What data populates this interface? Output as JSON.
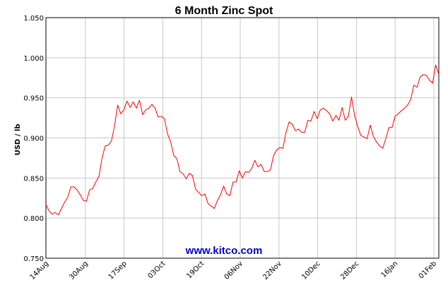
{
  "chart_data": {
    "type": "line",
    "title": "6 Month Zinc Spot",
    "xlabel": "",
    "ylabel": "USD / lb",
    "ylim": [
      0.75,
      1.05
    ],
    "yticks": [
      "1.050",
      "1.000",
      "0.950",
      "0.900",
      "0.850",
      "0.800",
      "0.750"
    ],
    "xticks": [
      "14Aug",
      "30Aug",
      "17Sep",
      "03Oct",
      "19Oct",
      "06Nov",
      "22Nov",
      "10Dec",
      "28Dec",
      "16Jan",
      "01Feb"
    ],
    "grid": true,
    "line_color": "#ff0000",
    "watermark": "www.kitco.com",
    "series": [
      {
        "values": [
          0.817,
          0.809,
          0.805,
          0.807,
          0.804,
          0.812,
          0.82,
          0.826,
          0.839,
          0.839,
          0.835,
          0.829,
          0.822,
          0.821,
          0.835,
          0.837,
          0.845,
          0.852,
          0.875,
          0.89,
          0.891,
          0.896,
          0.915,
          0.941,
          0.93,
          0.935,
          0.946,
          0.938,
          0.945,
          0.937,
          0.947,
          0.929,
          0.935,
          0.937,
          0.942,
          0.937,
          0.926,
          0.927,
          0.924,
          0.905,
          0.895,
          0.878,
          0.874,
          0.858,
          0.855,
          0.849,
          0.856,
          0.853,
          0.836,
          0.832,
          0.828,
          0.83,
          0.818,
          0.815,
          0.812,
          0.822,
          0.829,
          0.84,
          0.83,
          0.828,
          0.845,
          0.845,
          0.859,
          0.85,
          0.858,
          0.857,
          0.862,
          0.872,
          0.864,
          0.867,
          0.858,
          0.858,
          0.86,
          0.878,
          0.885,
          0.888,
          0.887,
          0.907,
          0.92,
          0.917,
          0.909,
          0.911,
          0.907,
          0.907,
          0.922,
          0.921,
          0.933,
          0.924,
          0.935,
          0.937,
          0.934,
          0.93,
          0.921,
          0.928,
          0.922,
          0.938,
          0.922,
          0.927,
          0.951,
          0.928,
          0.914,
          0.903,
          0.901,
          0.899,
          0.916,
          0.902,
          0.895,
          0.89,
          0.887,
          0.899,
          0.913,
          0.913,
          0.927,
          0.93,
          0.934,
          0.937,
          0.941,
          0.948,
          0.966,
          0.963,
          0.976,
          0.979,
          0.978,
          0.972,
          0.968,
          0.991,
          0.979
        ]
      }
    ]
  }
}
